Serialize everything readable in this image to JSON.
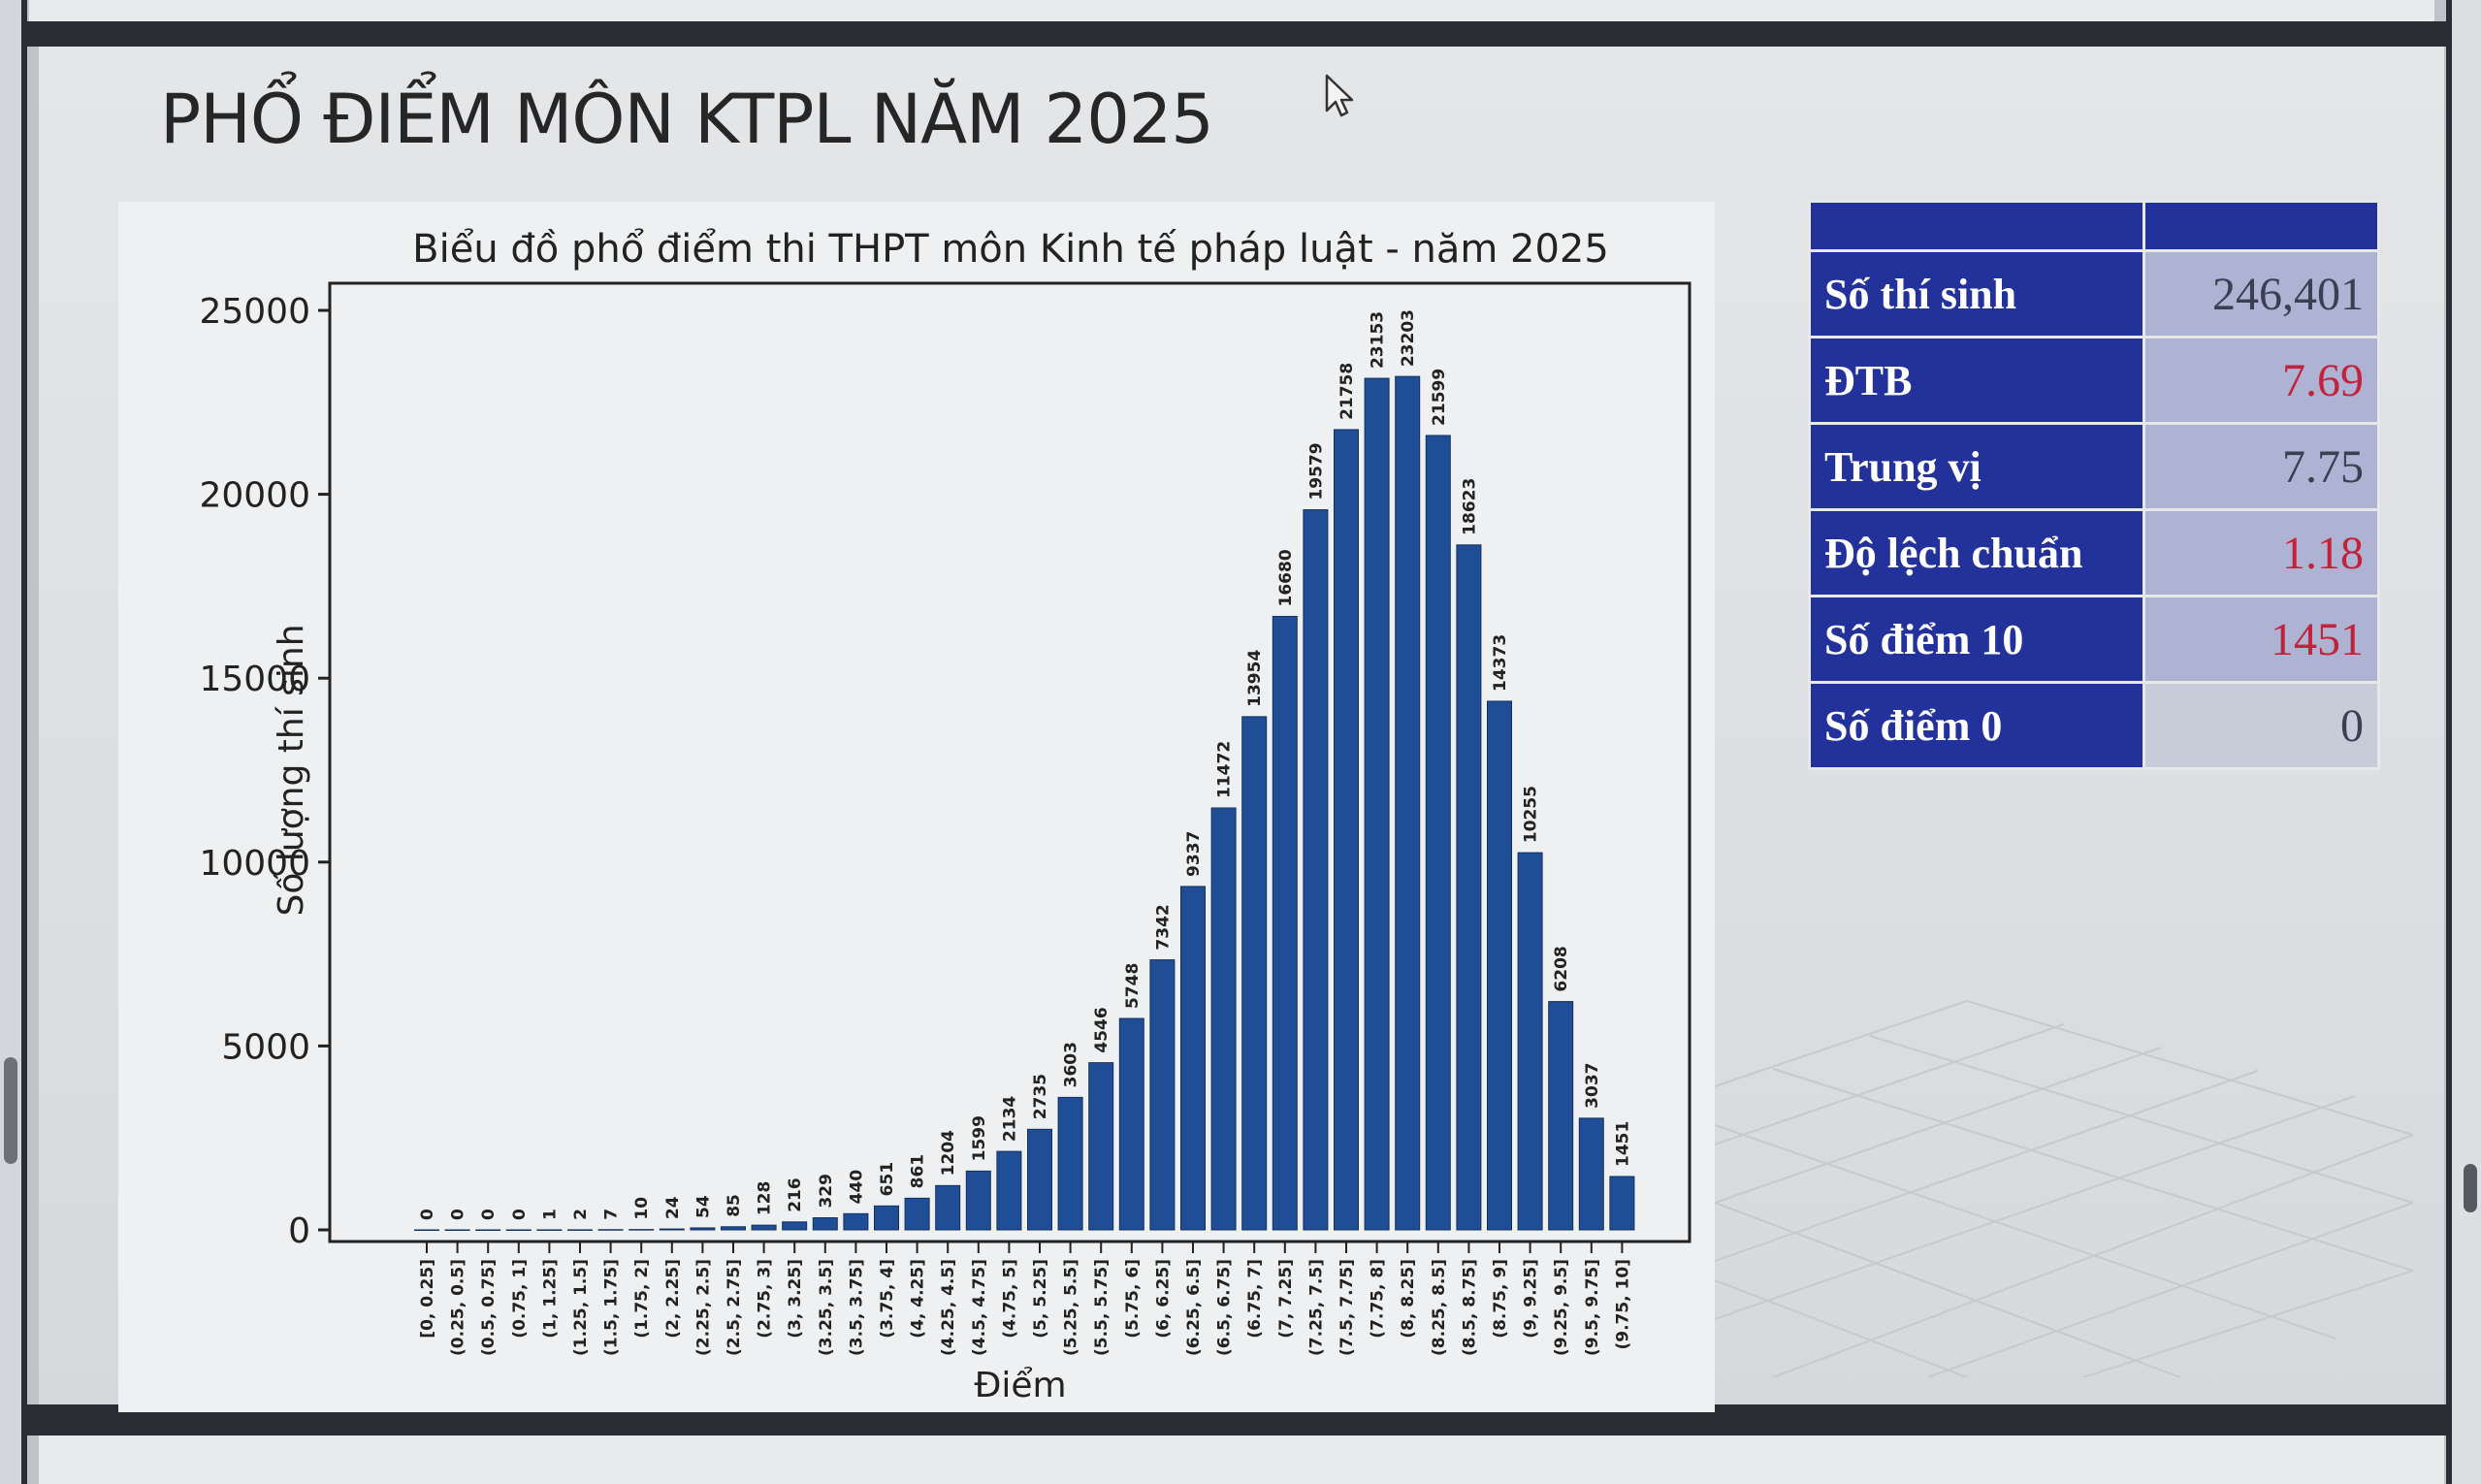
{
  "slide": {
    "title": "PHỔ ĐIỂM MÔN KTPL NĂM 2025"
  },
  "stats": {
    "rows": [
      {
        "label": "Số thí sinh",
        "value": "246,401",
        "color": "#3a3f52"
      },
      {
        "label": "ĐTB",
        "value": "7.69",
        "color": "#c2233a"
      },
      {
        "label": "Trung vị",
        "value": "7.75",
        "color": "#3a3f52"
      },
      {
        "label": "Độ lệch chuẩn",
        "value": "1.18",
        "color": "#c2233a"
      },
      {
        "label": "Số điểm 10",
        "value": "1451",
        "color": "#c2233a"
      },
      {
        "label": "Số điểm 0",
        "value": "0",
        "color": "#3a3f52"
      }
    ]
  },
  "chart_data": {
    "type": "bar",
    "title": "Biểu đồ phổ điểm thi THPT môn Kinh tế pháp luật - năm 2025",
    "xlabel": "Điểm",
    "ylabel": "Số lượng thí sinh",
    "ylim": [
      0,
      25000
    ],
    "yticks": [
      0,
      5000,
      10000,
      15000,
      20000,
      25000
    ],
    "bar_color": "#1f4e96",
    "categories": [
      "[0, 0.25]",
      "(0.25, 0.5]",
      "(0.5, 0.75]",
      "(0.75, 1]",
      "(1, 1.25]",
      "(1.25, 1.5]",
      "(1.5, 1.75]",
      "(1.75, 2]",
      "(2, 2.25]",
      "(2.25, 2.5]",
      "(2.5, 2.75]",
      "(2.75, 3]",
      "(3, 3.25]",
      "(3.25, 3.5]",
      "(3.5, 3.75]",
      "(3.75, 4]",
      "(4, 4.25]",
      "(4.25, 4.5]",
      "(4.5, 4.75]",
      "(4.75, 5]",
      "(5, 5.25]",
      "(5.25, 5.5]",
      "(5.5, 5.75]",
      "(5.75, 6]",
      "(6, 6.25]",
      "(6.25, 6.5]",
      "(6.5, 6.75]",
      "(6.75, 7]",
      "(7, 7.25]",
      "(7.25, 7.5]",
      "(7.5, 7.75]",
      "(7.75, 8]",
      "(8, 8.25]",
      "(8.25, 8.5]",
      "(8.5, 8.75]",
      "(8.75, 9]",
      "(9, 9.25]",
      "(9.25, 9.5]",
      "(9.5, 9.75]",
      "(9.75, 10]"
    ],
    "values": [
      0,
      0,
      0,
      0,
      1,
      2,
      7,
      10,
      24,
      54,
      85,
      128,
      216,
      329,
      440,
      651,
      861,
      1204,
      1599,
      2134,
      2735,
      3603,
      4546,
      5748,
      7342,
      9337,
      11472,
      13954,
      16680,
      19579,
      21758,
      23153,
      23203,
      21599,
      18623,
      14373,
      10255,
      6208,
      3037,
      1451
    ],
    "grid": false,
    "legend": "none"
  }
}
